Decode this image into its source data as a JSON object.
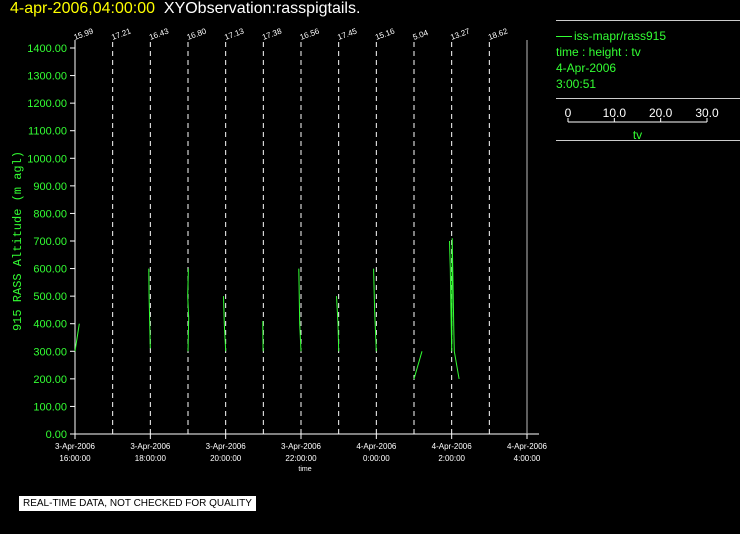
{
  "header": {
    "datetime": "4-apr-2006,04:00:00",
    "title": "XYObservation:rasspigtails."
  },
  "legend": {
    "series_label": "iss-mapr/rass915",
    "axes_desc": "time : height : tv",
    "date": "4-Apr-2006",
    "time": "3:00:51",
    "scale_ticks": [
      "0",
      "10.0",
      "20.0",
      "30.0"
    ],
    "scale_unit": "tv"
  },
  "disclaimer": "REAL-TIME DATA, NOT CHECKED FOR QUALITY",
  "colors": {
    "trace": "#33ff33",
    "header_date": "#ffff00",
    "axis": "#ffffff"
  },
  "chart_data": {
    "type": "line",
    "xlabel": "time",
    "ylabel": "915 RASS Altitude (m agl)",
    "ylim": [
      0,
      1400
    ],
    "y_ticks": [
      "0.00",
      "100.00",
      "200.00",
      "300.00",
      "400.00",
      "500.00",
      "600.00",
      "700.00",
      "800.00",
      "900.00",
      "1000.00",
      "1100.00",
      "1200.00",
      "1300.00",
      "1400.00"
    ],
    "x_ticks": [
      {
        "t": "2006-04-03T16:00",
        "line1": "3-Apr-2006",
        "line2": "16:00:00"
      },
      {
        "t": "2006-04-03T18:00",
        "line1": "3-Apr-2006",
        "line2": "18:00:00"
      },
      {
        "t": "2006-04-03T20:00",
        "line1": "3-Apr-2006",
        "line2": "20:00:00"
      },
      {
        "t": "2006-04-03T22:00",
        "line1": "3-Apr-2006",
        "line2": "22:00:00"
      },
      {
        "t": "2006-04-04T00:00",
        "line1": "4-Apr-2006",
        "line2": "0:00:00"
      },
      {
        "t": "2006-04-04T02:00",
        "line1": "4-Apr-2006",
        "line2": "2:00:00"
      },
      {
        "t": "2006-04-04T04:00",
        "line1": "4-Apr-2006",
        "line2": "4:00:00"
      }
    ],
    "xlim": [
      "2006-04-03T16:00",
      "2006-04-04T04:00"
    ],
    "tv_scale_range": [
      0,
      30
    ],
    "profiles": [
      {
        "t": "2006-04-03T16:00",
        "label": "15.99",
        "points": [
          [
            3.45,
            400
          ],
          [
            0,
            300
          ]
        ]
      },
      {
        "t": "2006-04-03T17:00",
        "label": "17.21",
        "points": []
      },
      {
        "t": "2006-04-03T18:00",
        "label": "16.43",
        "points": [
          [
            -1.25,
            600
          ],
          [
            -0.95,
            500
          ],
          [
            0,
            310
          ]
        ]
      },
      {
        "t": "2006-04-03T19:00",
        "label": "16.80",
        "points": [
          [
            0.35,
            600
          ],
          [
            -0.25,
            500
          ],
          [
            0.55,
            420
          ],
          [
            0,
            300
          ]
        ]
      },
      {
        "t": "2006-04-03T20:00",
        "label": "17.13",
        "points": [
          [
            -1.75,
            500
          ],
          [
            -1.05,
            400
          ],
          [
            0,
            300
          ]
        ]
      },
      {
        "t": "2006-04-03T21:00",
        "label": "17.38",
        "points": [
          [
            -0.45,
            410
          ],
          [
            -0.35,
            350
          ],
          [
            -0.15,
            300
          ]
        ]
      },
      {
        "t": "2006-04-03T22:00",
        "label": "16.56",
        "points": [
          [
            -1.75,
            600
          ],
          [
            -1.05,
            400
          ],
          [
            0,
            300
          ]
        ]
      },
      {
        "t": "2006-04-03T23:00",
        "label": "17.45",
        "points": [
          [
            -1.75,
            500
          ],
          [
            -0.55,
            400
          ],
          [
            0,
            300
          ]
        ]
      },
      {
        "t": "2006-04-04T00:00",
        "label": "15.16",
        "points": [
          [
            -2.15,
            600
          ],
          [
            -1.35,
            450
          ],
          [
            0,
            300
          ]
        ]
      },
      {
        "t": "2006-04-04T01:00",
        "label": "5.04",
        "points": [
          [
            0,
            200
          ],
          [
            6.35,
            300
          ]
        ]
      },
      {
        "t": "2006-04-04T02:00",
        "label": "13.27",
        "points": [
          [
            -1.75,
            700
          ],
          [
            -1.05,
            600
          ],
          [
            -0.75,
            500
          ],
          [
            0,
            300
          ],
          [
            0.4,
            710
          ],
          [
            1.7,
            380
          ],
          [
            2.1,
            300
          ],
          [
            5.9,
            200
          ]
        ]
      },
      {
        "t": "2006-04-04T03:00",
        "label": "18.62",
        "points": []
      }
    ]
  }
}
